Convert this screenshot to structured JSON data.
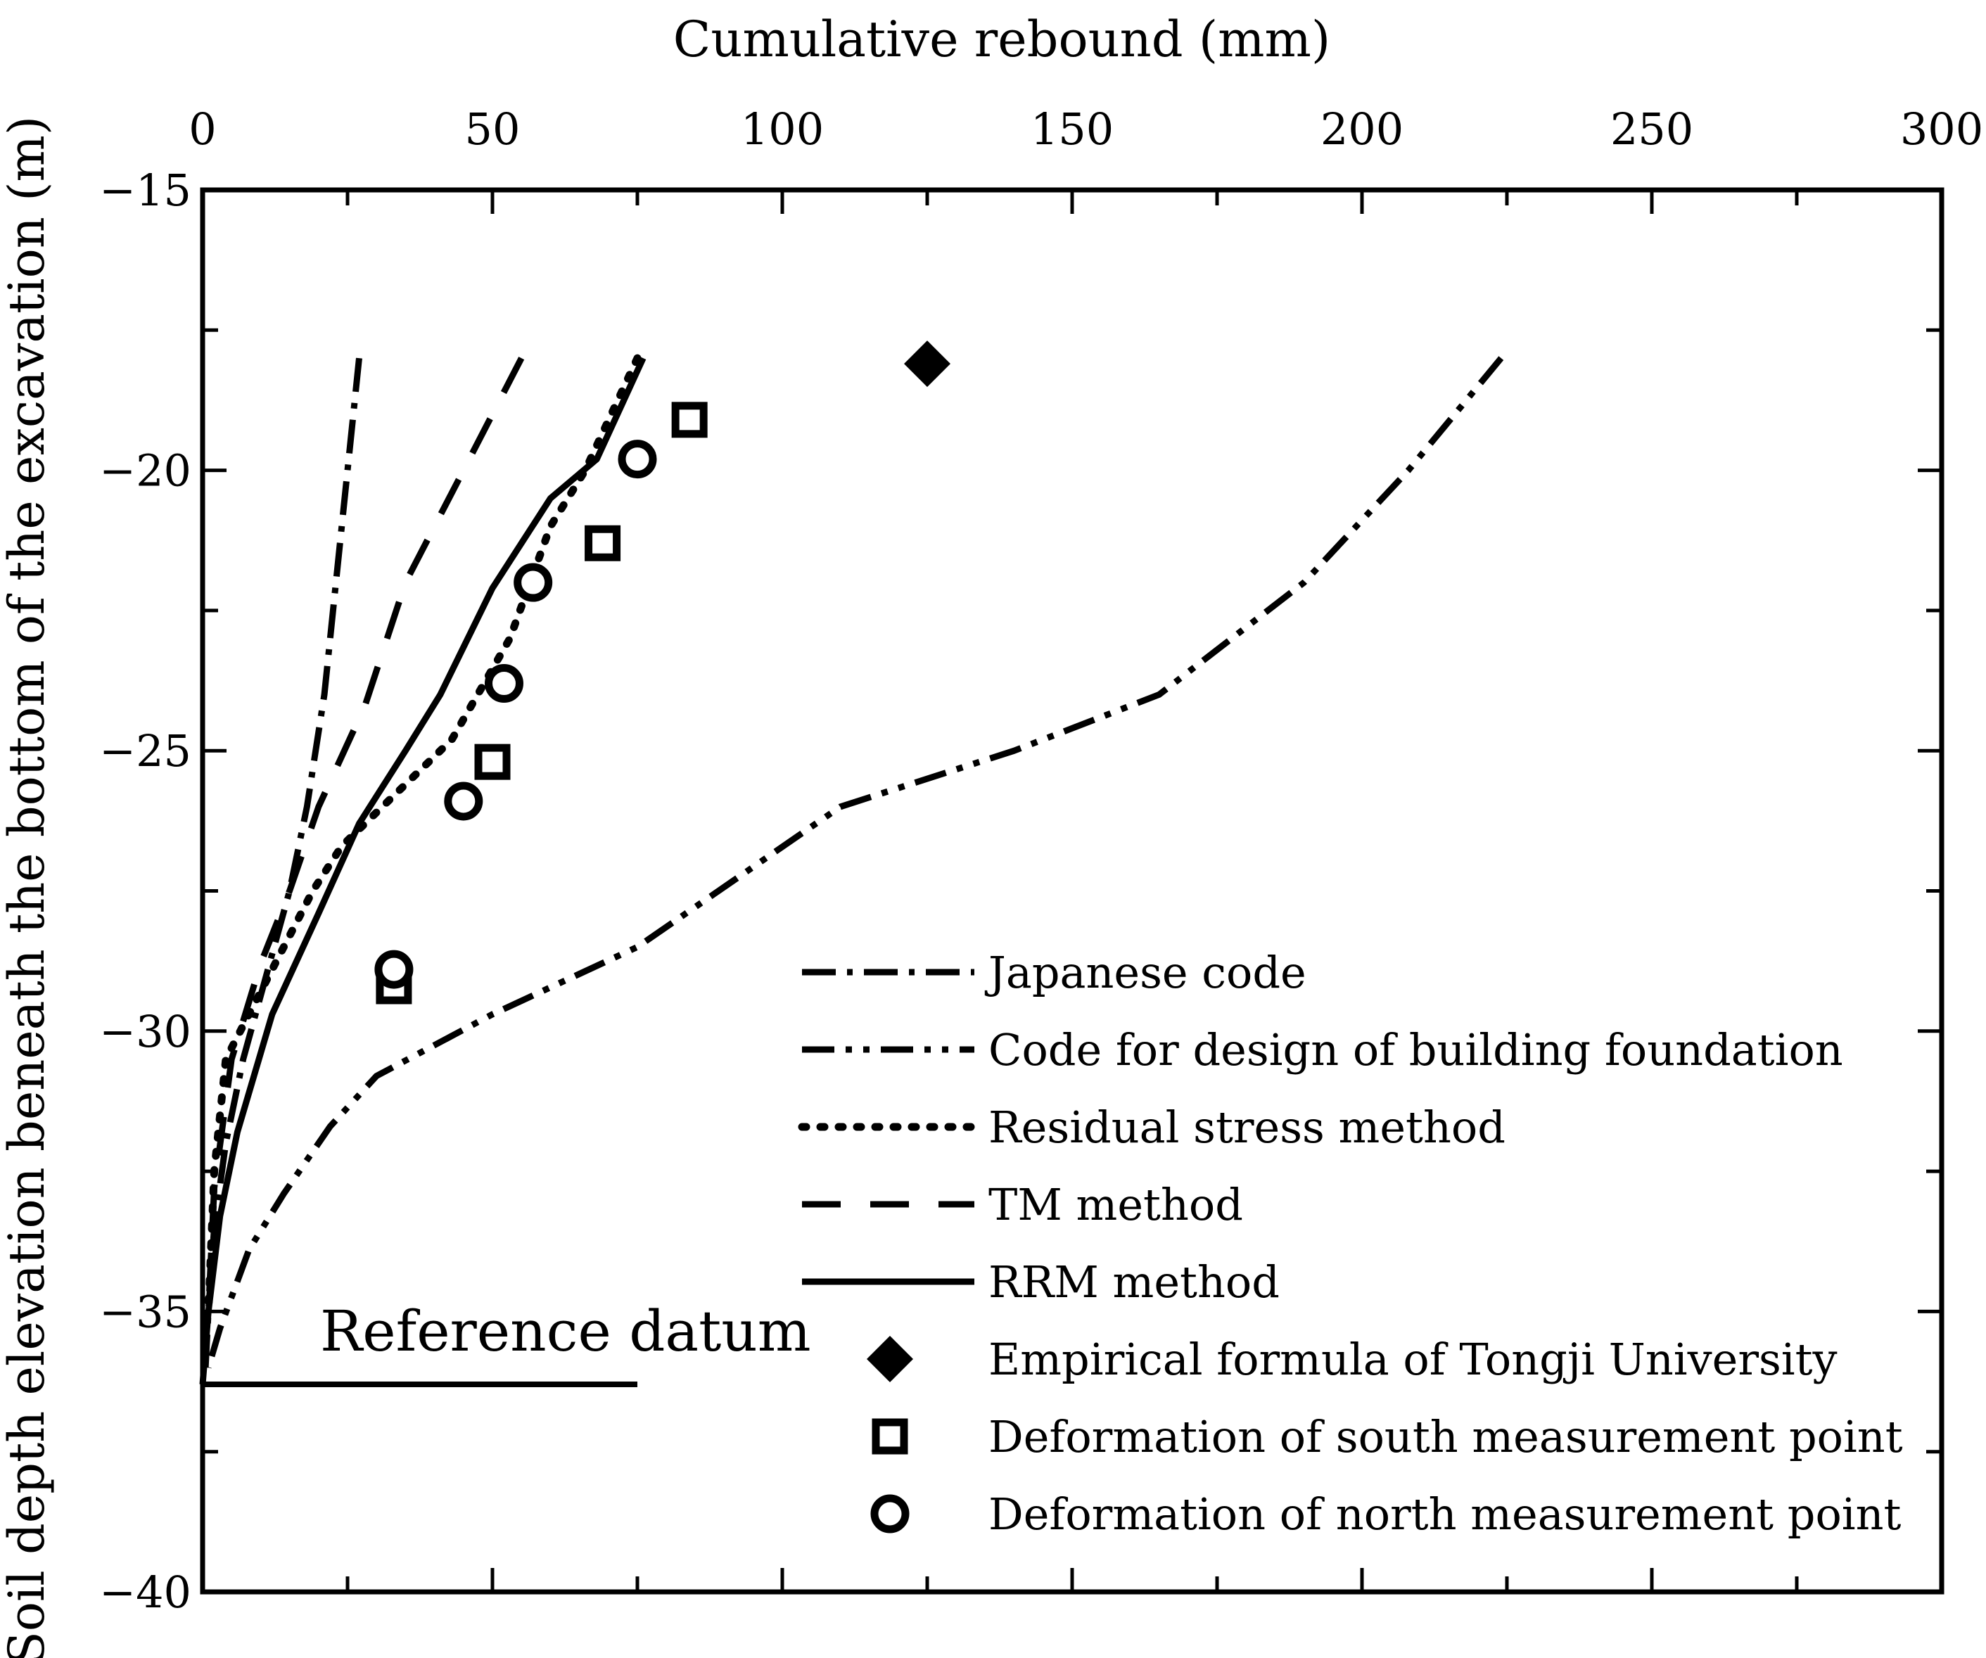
{
  "chart_data": {
    "type": "line",
    "xlabel": "Cumulative rebound (mm)",
    "ylabel": "Soil depth elevation beneath the bottom of the excavation (m)",
    "xlim": [
      0,
      300
    ],
    "ylim": [
      -40,
      -15
    ],
    "x_ticks": [
      0,
      50,
      100,
      150,
      200,
      250,
      300
    ],
    "y_ticks": [
      -15,
      -20,
      -25,
      -30,
      -35,
      -40
    ],
    "x_axis_position": "top",
    "grid": false,
    "legend_position": "bottom-right",
    "annotation": {
      "text": "Reference datum",
      "y": -36.3,
      "x_range": [
        0,
        75
      ]
    },
    "series": [
      {
        "name": "Japanese code",
        "style": "dashdot",
        "x": [
          27,
          25,
          23,
          21,
          18,
          15,
          11,
          7,
          4,
          2,
          1,
          0.5
        ],
        "y": [
          -18,
          -20,
          -22,
          -24,
          -26,
          -27.5,
          -29,
          -30.5,
          -32,
          -33.5,
          -35,
          -36
        ]
      },
      {
        "name": "Code for design of building foundation",
        "style": "dashdotdot",
        "x": [
          224,
          208,
          190,
          165,
          140,
          110,
          75,
          50,
          30,
          22,
          14,
          8,
          3,
          1
        ],
        "y": [
          -18,
          -20,
          -22,
          -24,
          -25,
          -26,
          -28.5,
          -29.7,
          -30.8,
          -31.7,
          -32.9,
          -33.9,
          -35.3,
          -36
        ]
      },
      {
        "name": "Residual stress method",
        "style": "dotted",
        "x": [
          75,
          66,
          60,
          53,
          43,
          33,
          24,
          19,
          14,
          9,
          4,
          2,
          1
        ],
        "y": [
          -18,
          -20,
          -21,
          -23,
          -24.8,
          -25.8,
          -26.7,
          -27.5,
          -28.5,
          -29.5,
          -30.5,
          -32.5,
          -35
        ]
      },
      {
        "name": "TM method",
        "style": "dashed",
        "x": [
          55,
          45,
          35,
          28,
          20,
          15,
          10,
          5,
          2,
          1
        ],
        "y": [
          -18,
          -20,
          -22,
          -24.2,
          -26,
          -27.5,
          -28.8,
          -30.5,
          -32.8,
          -35
        ]
      },
      {
        "name": "RRM method",
        "style": "solid",
        "x": [
          76,
          68,
          60,
          50,
          41,
          35,
          27,
          20,
          12,
          6,
          3,
          1,
          0
        ],
        "y": [
          -18,
          -19.8,
          -20.5,
          -22.1,
          -24,
          -25,
          -26.3,
          -27.9,
          -29.7,
          -31.8,
          -33.3,
          -35,
          -36.3
        ]
      },
      {
        "name": "Empirical formula of Tongji University",
        "style": "diamond",
        "x": [
          125
        ],
        "y": [
          -18.1
        ]
      },
      {
        "name": "Deformation of south measurement point",
        "style": "square",
        "x": [
          84,
          69,
          50,
          33
        ],
        "y": [
          -19.1,
          -21.3,
          -25.2,
          -29.2
        ]
      },
      {
        "name": "Deformation of north measurement point",
        "style": "circle",
        "x": [
          75,
          57,
          52,
          45,
          33
        ],
        "y": [
          -19.8,
          -22,
          -23.8,
          -25.9,
          -28.9
        ]
      }
    ]
  }
}
